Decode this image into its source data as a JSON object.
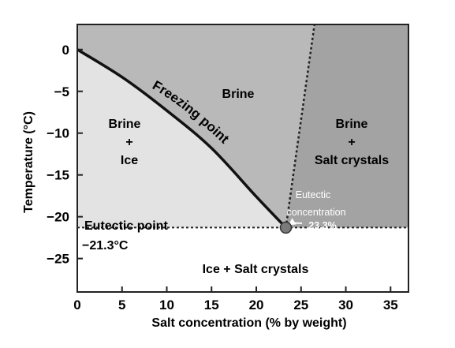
{
  "chart_data": {
    "type": "phase-diagram",
    "x_axis": {
      "label": "Salt concentration (% by weight)",
      "ticks": [
        "0",
        "5",
        "10",
        "15",
        "20",
        "25",
        "30",
        "35"
      ],
      "range": [
        0,
        37
      ]
    },
    "y_axis": {
      "label": "Temperature (°C)",
      "ticks": [
        "0",
        "−5",
        "−10",
        "−15",
        "−20",
        "−25"
      ],
      "range": [
        -29,
        3
      ]
    },
    "curves": {
      "freezing_point": {
        "label": "Freezing point",
        "points": [
          [
            0,
            0
          ],
          [
            5,
            -3.3
          ],
          [
            10,
            -7.3
          ],
          [
            15,
            -11.8
          ],
          [
            20,
            -17.6
          ],
          [
            23.3,
            -21.3
          ]
        ]
      },
      "solubility": {
        "points": [
          [
            23.3,
            -21.3
          ],
          [
            26.5,
            3
          ]
        ]
      }
    },
    "eutectic": {
      "label": "Eutectic point",
      "temperature_label": "−21.3°C",
      "temperature": -21.3,
      "concentration": 23.3,
      "concentration_label_line1": "Eutectic",
      "concentration_label_line2": "concentration",
      "concentration_value_label": "23.3%"
    },
    "regions": {
      "brine_ice": {
        "line1": "Brine",
        "line2": "+",
        "line3": "Ice"
      },
      "brine": {
        "line1": "Brine"
      },
      "brine_salt": {
        "line1": "Brine",
        "line2": "+",
        "line3": "Salt crystals"
      },
      "ice_salt": {
        "line1": "Ice + Salt crystals"
      }
    },
    "colors": {
      "brine_ice_fill": "#e3e3e3",
      "brine_fill": "#b9b9b9",
      "brine_salt_fill": "#a3a3a3",
      "ice_salt_fill": "#ffffff",
      "line": "#222222",
      "eutectic_marker": "#7a7a7a"
    }
  }
}
